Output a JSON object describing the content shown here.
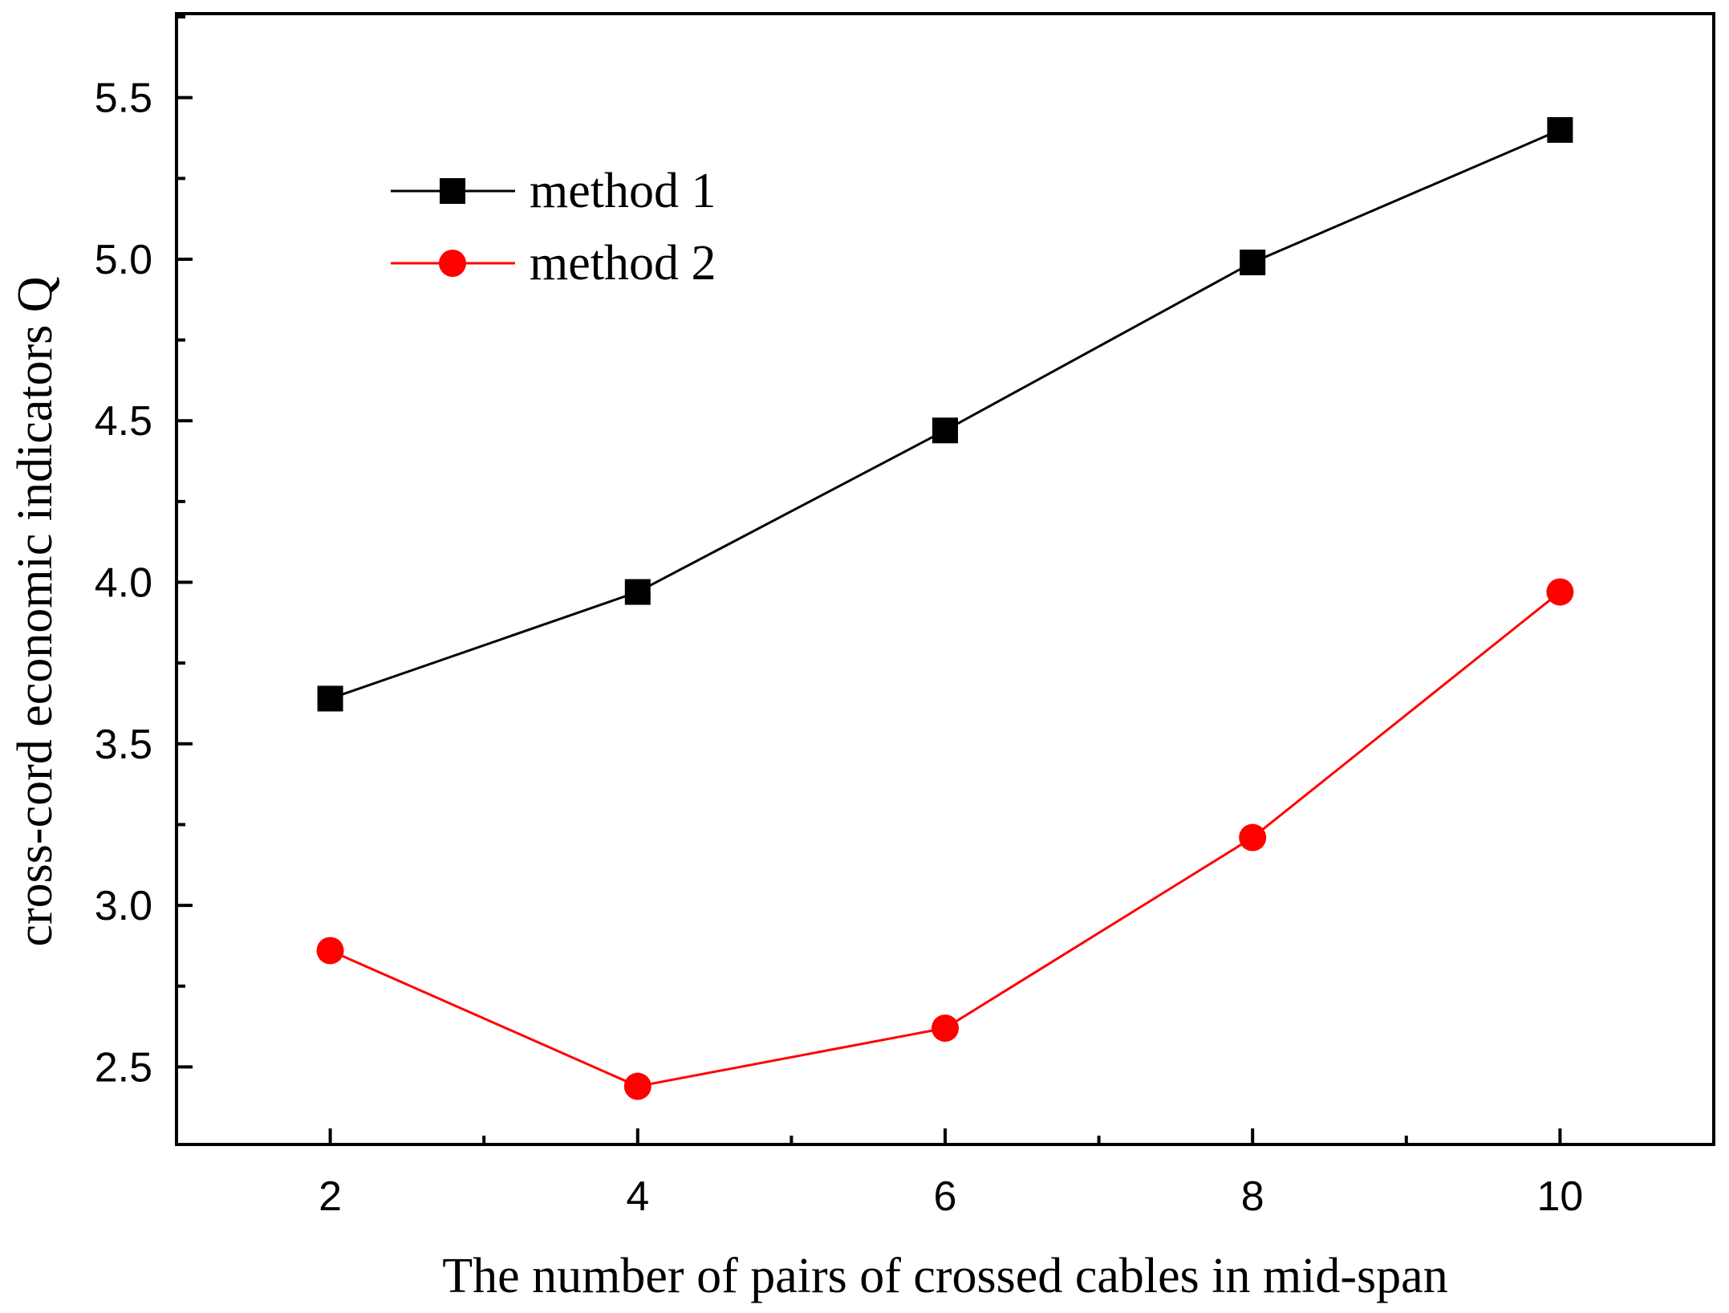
{
  "chart_data": {
    "type": "line",
    "title": "",
    "xlabel": "The number of pairs of crossed cables in mid-span",
    "ylabel": "cross-cord economic indicators Q",
    "xlim": [
      1,
      11
    ],
    "ylim": [
      2.26,
      5.76
    ],
    "x": [
      2,
      4,
      6,
      8,
      10
    ],
    "x_ticks": [
      2,
      4,
      6,
      8,
      10
    ],
    "x_tick_labels": [
      "2",
      "4",
      "6",
      "8",
      "10"
    ],
    "x_minor_ticks": [
      3,
      5,
      7,
      9
    ],
    "y_ticks": [
      2.5,
      3.0,
      3.5,
      4.0,
      4.5,
      5.0,
      5.5
    ],
    "y_tick_labels": [
      "2.5",
      "3.0",
      "3.5",
      "4.0",
      "4.5",
      "5.0",
      "5.5"
    ],
    "y_minor_ticks": [
      2.75,
      3.25,
      3.75,
      4.25,
      4.75,
      5.25,
      5.75
    ],
    "grid": false,
    "legend_position": "top-left",
    "series": [
      {
        "name": "method 1",
        "color": "#000000",
        "marker": "square",
        "values": [
          3.64,
          3.97,
          4.47,
          4.99,
          5.4
        ]
      },
      {
        "name": "method 2",
        "color": "#ff0000",
        "marker": "circle",
        "values": [
          2.86,
          2.44,
          2.62,
          3.21,
          3.97
        ]
      }
    ]
  }
}
